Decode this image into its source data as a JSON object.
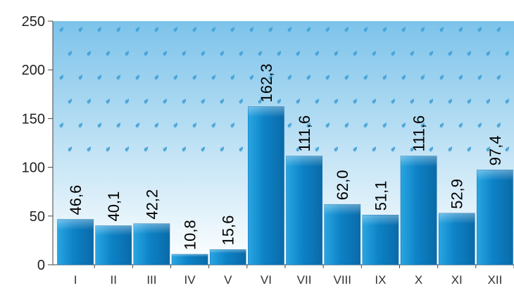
{
  "chart_data": {
    "type": "bar",
    "categories": [
      "I",
      "II",
      "III",
      "IV",
      "V",
      "VI",
      "VII",
      "VIII",
      "IX",
      "X",
      "XI",
      "XII"
    ],
    "values": [
      46.6,
      40.1,
      42.2,
      10.8,
      15.6,
      162.3,
      111.6,
      62.0,
      51.1,
      111.6,
      52.9,
      97.4
    ],
    "value_labels": [
      "46,6",
      "40,1",
      "42,2",
      "10,8",
      "15,6",
      "162,3",
      "111,6",
      "62,0",
      "51,1",
      "111,6",
      "52,9",
      "97,4"
    ],
    "yticks": [
      "0",
      "50",
      "100",
      "150",
      "200",
      "250"
    ],
    "ylim": [
      0,
      250
    ],
    "title": "",
    "xlabel": "",
    "ylabel": "",
    "grid": false,
    "legend": "none",
    "colors": {
      "bar_top": "#29a6e2",
      "bar_mid": "#0d82c6",
      "bar_bottom": "#0a6aa8",
      "bg_top": "#7cc3ea",
      "bg_bottom": "#ffffff",
      "raindrop": "#3d9fd6",
      "axis": "#444444"
    },
    "background_icon": "raindrop-icon"
  }
}
